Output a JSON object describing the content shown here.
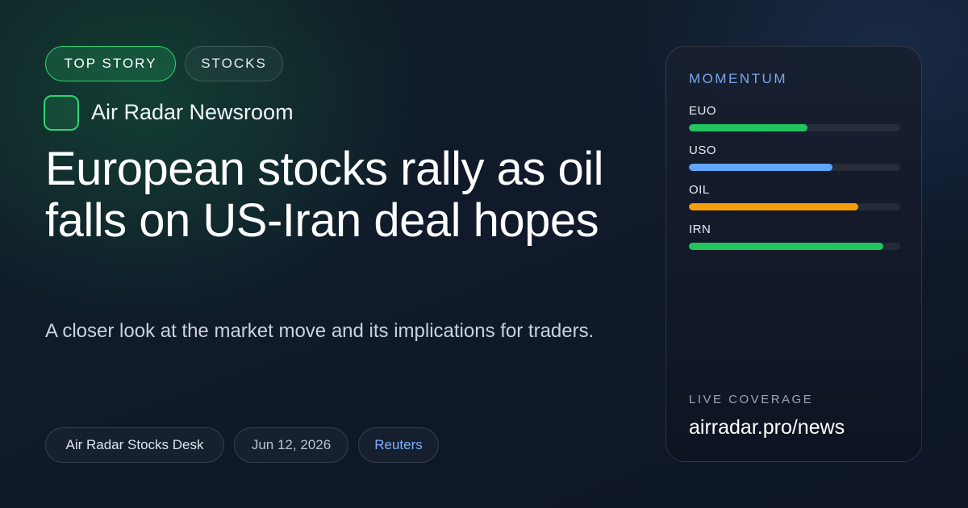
{
  "tags": {
    "primary": "TOP STORY",
    "secondary": "STOCKS"
  },
  "brand": {
    "name": "Air Radar Newsroom",
    "accent": "#2fd577"
  },
  "article": {
    "headline": "European stocks rally as oil falls on US-Iran deal hopes",
    "subheadline": "A closer look at the market move and its implications for traders."
  },
  "meta": {
    "desk": "Air Radar Stocks Desk",
    "date": "Jun 12, 2026",
    "source": "Reuters"
  },
  "momentum": {
    "title": "MOMENTUM",
    "items": [
      {
        "label": "EUO",
        "value": 0.56,
        "color": "#22c55e"
      },
      {
        "label": "USO",
        "value": 0.68,
        "color": "#60a5fa"
      },
      {
        "label": "OIL",
        "value": 0.8,
        "color": "#f59e0b"
      },
      {
        "label": "IRN",
        "value": 0.92,
        "color": "#22c55e"
      }
    ]
  },
  "live": {
    "label": "LIVE COVERAGE",
    "url": "airradar.pro/news"
  }
}
